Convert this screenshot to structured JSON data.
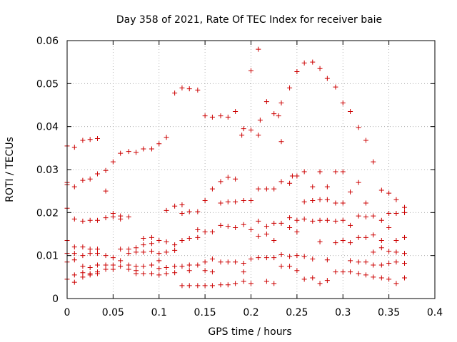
{
  "chart_data": {
    "type": "scatter",
    "title": "Day 358 of 2021, Rate Of TEC Index for receiver baie",
    "xlabel": "GPS time / hours",
    "ylabel": "ROTI / TECUs",
    "xlim": [
      0,
      0.4
    ],
    "ylim": [
      0,
      0.06
    ],
    "xticks": [
      "0",
      "0.05",
      "0.1",
      "0.15",
      "0.2",
      "0.25",
      "0.3",
      "0.35",
      "0.4"
    ],
    "yticks": [
      "0",
      "0.01",
      "0.02",
      "0.03",
      "0.04",
      "0.05",
      "0.06"
    ],
    "grid": true,
    "marker": "plus",
    "color": "#cc0000",
    "series": [
      {
        "x": [
          0.0,
          0.0,
          0.0,
          0.0,
          0.0,
          0.0,
          0.0,
          0.0,
          0.008,
          0.008,
          0.008,
          0.008,
          0.008,
          0.008,
          0.008,
          0.008,
          0.017,
          0.017,
          0.017,
          0.017,
          0.017,
          0.017,
          0.017,
          0.017,
          0.025,
          0.025,
          0.025,
          0.025,
          0.025,
          0.025,
          0.025,
          0.025,
          0.033,
          0.033,
          0.033,
          0.033,
          0.033,
          0.033,
          0.033,
          0.033,
          0.042,
          0.042,
          0.042,
          0.042,
          0.042,
          0.042,
          0.05,
          0.05,
          0.05,
          0.05,
          0.05,
          0.05,
          0.058,
          0.058,
          0.058,
          0.058,
          0.058,
          0.058,
          0.067,
          0.067,
          0.067,
          0.067,
          0.067,
          0.067,
          0.075,
          0.075,
          0.075,
          0.075,
          0.075,
          0.075,
          0.083,
          0.083,
          0.083,
          0.083,
          0.083,
          0.083,
          0.092,
          0.092,
          0.092,
          0.092,
          0.092,
          0.092,
          0.1,
          0.1,
          0.1,
          0.1,
          0.1,
          0.1,
          0.108,
          0.108,
          0.108,
          0.108,
          0.108,
          0.108,
          0.117,
          0.117,
          0.117,
          0.117,
          0.117,
          0.117,
          0.125,
          0.125,
          0.125,
          0.125,
          0.125,
          0.125,
          0.133,
          0.133,
          0.133,
          0.133,
          0.133,
          0.133,
          0.142,
          0.142,
          0.142,
          0.142,
          0.142,
          0.142,
          0.15,
          0.15,
          0.15,
          0.15,
          0.15,
          0.15,
          0.158,
          0.158,
          0.158,
          0.158,
          0.158,
          0.158,
          0.167,
          0.167,
          0.167,
          0.167,
          0.167,
          0.167,
          0.175,
          0.175,
          0.175,
          0.175,
          0.175,
          0.175,
          0.183,
          0.183,
          0.183,
          0.183,
          0.183,
          0.183,
          0.192,
          0.192,
          0.192,
          0.192,
          0.192,
          0.192,
          0.2,
          0.2,
          0.2,
          0.2,
          0.2,
          0.2,
          0.208,
          0.208,
          0.208,
          0.208,
          0.208,
          0.208,
          0.217,
          0.217,
          0.217,
          0.217,
          0.217,
          0.217,
          0.225,
          0.225,
          0.225,
          0.225,
          0.225,
          0.225,
          0.233,
          0.233,
          0.233,
          0.233,
          0.233,
          0.233,
          0.242,
          0.242,
          0.242,
          0.242,
          0.242,
          0.242,
          0.25,
          0.25,
          0.25,
          0.25,
          0.25,
          0.25,
          0.258,
          0.258,
          0.258,
          0.258,
          0.258,
          0.258,
          0.267,
          0.267,
          0.267,
          0.267,
          0.267,
          0.267,
          0.275,
          0.275,
          0.275,
          0.275,
          0.275,
          0.275,
          0.283,
          0.283,
          0.283,
          0.283,
          0.283,
          0.283,
          0.292,
          0.292,
          0.292,
          0.292,
          0.292,
          0.292,
          0.3,
          0.3,
          0.3,
          0.3,
          0.3,
          0.3,
          0.308,
          0.308,
          0.308,
          0.308,
          0.308,
          0.308,
          0.317,
          0.317,
          0.317,
          0.317,
          0.317,
          0.317,
          0.325,
          0.325,
          0.325,
          0.325,
          0.325,
          0.325,
          0.333,
          0.333,
          0.333,
          0.333,
          0.333,
          0.333,
          0.342,
          0.342,
          0.342,
          0.342,
          0.342,
          0.342,
          0.35,
          0.35,
          0.35,
          0.35,
          0.35,
          0.35,
          0.358,
          0.358,
          0.358,
          0.358,
          0.358,
          0.358,
          0.367,
          0.367,
          0.367,
          0.367,
          0.367,
          0.367,
          0.19,
          0.21,
          0.23,
          0.245
        ],
        "y": [
          0.0355,
          0.027,
          0.0265,
          0.021,
          0.0135,
          0.0105,
          0.0085,
          0.0045,
          0.0352,
          0.026,
          0.0185,
          0.012,
          0.0105,
          0.009,
          0.0055,
          0.0038,
          0.0368,
          0.0275,
          0.018,
          0.012,
          0.01,
          0.0075,
          0.006,
          0.005,
          0.037,
          0.0278,
          0.0182,
          0.0115,
          0.0105,
          0.0072,
          0.0058,
          0.0055,
          0.0372,
          0.029,
          0.0182,
          0.0115,
          0.0105,
          0.0078,
          0.0062,
          0.0058,
          0.0298,
          0.025,
          0.0188,
          0.01,
          0.0078,
          0.0068,
          0.0318,
          0.0198,
          0.019,
          0.0095,
          0.0078,
          0.0068,
          0.0338,
          0.0192,
          0.0185,
          0.0115,
          0.0088,
          0.0075,
          0.0342,
          0.019,
          0.0115,
          0.0105,
          0.0078,
          0.0068,
          0.034,
          0.0118,
          0.0108,
          0.0075,
          0.0065,
          0.0058,
          0.0348,
          0.014,
          0.0125,
          0.0108,
          0.0075,
          0.0058,
          0.0348,
          0.0142,
          0.0128,
          0.011,
          0.0078,
          0.0058,
          0.036,
          0.0135,
          0.0105,
          0.0088,
          0.007,
          0.0055,
          0.0375,
          0.0205,
          0.0132,
          0.0108,
          0.0072,
          0.0058,
          0.0478,
          0.0215,
          0.0125,
          0.0112,
          0.0075,
          0.006,
          0.049,
          0.0218,
          0.0198,
          0.0135,
          0.0075,
          0.003,
          0.0488,
          0.0202,
          0.014,
          0.0078,
          0.0065,
          0.003,
          0.0485,
          0.0202,
          0.016,
          0.0142,
          0.0078,
          0.003,
          0.0425,
          0.0228,
          0.0155,
          0.0085,
          0.0065,
          0.003,
          0.0422,
          0.0255,
          0.0155,
          0.0092,
          0.0062,
          0.003,
          0.0425,
          0.0272,
          0.0222,
          0.017,
          0.0085,
          0.0032,
          0.0422,
          0.0282,
          0.0225,
          0.0168,
          0.0085,
          0.0032,
          0.0435,
          0.0278,
          0.0225,
          0.0165,
          0.0085,
          0.0035,
          0.0395,
          0.0228,
          0.0172,
          0.0082,
          0.0062,
          0.004,
          0.053,
          0.0392,
          0.0228,
          0.016,
          0.0092,
          0.0035,
          0.058,
          0.038,
          0.0255,
          0.018,
          0.0145,
          0.0095,
          0.0458,
          0.0255,
          0.0168,
          0.015,
          0.0095,
          0.004,
          0.043,
          0.0255,
          0.0175,
          0.0135,
          0.0095,
          0.0035,
          0.0455,
          0.0365,
          0.0272,
          0.0175,
          0.0102,
          0.0075,
          0.049,
          0.0268,
          0.0188,
          0.0165,
          0.0098,
          0.0075,
          0.0528,
          0.0285,
          0.0182,
          0.0155,
          0.01,
          0.0065,
          0.0548,
          0.0295,
          0.0225,
          0.0185,
          0.0098,
          0.0045,
          0.055,
          0.026,
          0.0228,
          0.018,
          0.0092,
          0.0048,
          0.0535,
          0.0295,
          0.023,
          0.0182,
          0.0132,
          0.0035,
          0.0512,
          0.026,
          0.023,
          0.0182,
          0.009,
          0.0042,
          0.0492,
          0.0295,
          0.0222,
          0.018,
          0.013,
          0.0062,
          0.0455,
          0.0295,
          0.0222,
          0.0182,
          0.0135,
          0.0062,
          0.0435,
          0.0248,
          0.017,
          0.013,
          0.0088,
          0.0062,
          0.0398,
          0.027,
          0.0192,
          0.0142,
          0.0085,
          0.0058,
          0.0368,
          0.0222,
          0.019,
          0.0142,
          0.0085,
          0.0055,
          0.0318,
          0.0192,
          0.0148,
          0.0108,
          0.0078,
          0.005,
          0.0252,
          0.0182,
          0.0135,
          0.0118,
          0.0078,
          0.0048,
          0.0245,
          0.0198,
          0.0165,
          0.011,
          0.0082,
          0.0045,
          0.023,
          0.0198,
          0.0135,
          0.0108,
          0.0085,
          0.0035,
          0.0212,
          0.02,
          0.0142,
          0.0105,
          0.0082,
          0.0048,
          0.038,
          0.0415,
          0.0425,
          0.0285
        ]
      }
    ]
  }
}
